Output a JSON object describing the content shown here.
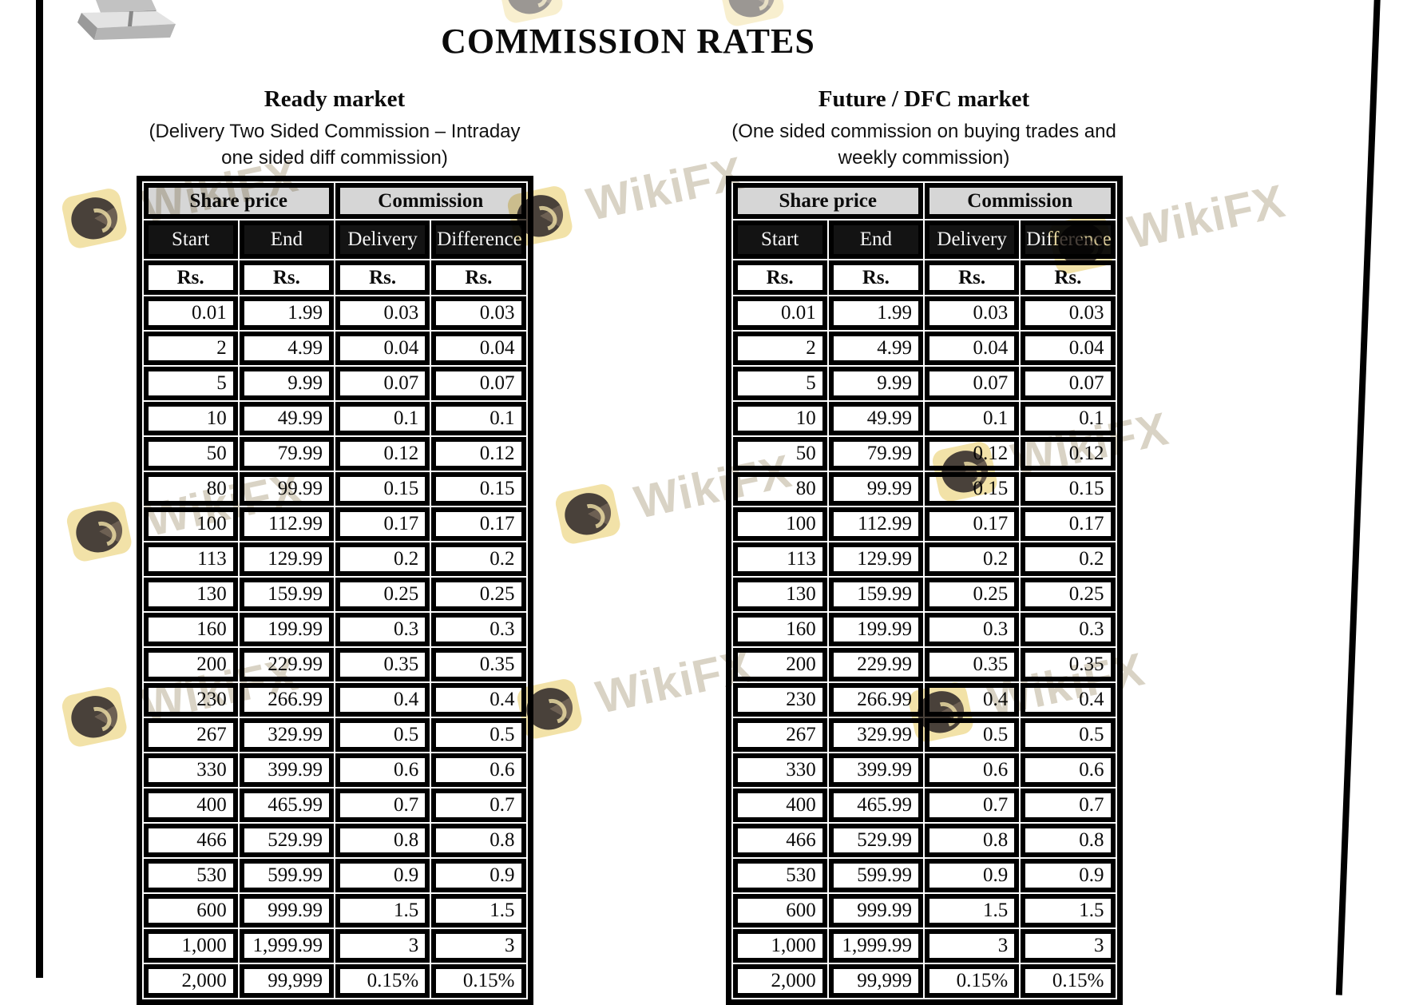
{
  "page": {
    "title": "COMMISSION RATES"
  },
  "watermark": {
    "text": "WikiFX",
    "logo_color": "#f2e2a8",
    "text_color": "#d9d3c5"
  },
  "colors": {
    "group_header_bg": "#d6d6d6",
    "sub_header_bg": "#131313",
    "table_border": "#000000",
    "page_bg": "#ffffff"
  },
  "tables": [
    {
      "title": "Ready market",
      "subtitle_line1": "(Delivery Two Sided Commission – Intraday",
      "subtitle_line2": "one sided diff commission)",
      "group_headers": [
        "Share price",
        "Commission"
      ],
      "col_headers": [
        "Start",
        "End",
        "Delivery",
        "Difference"
      ],
      "unit_row": [
        "Rs.",
        "Rs.",
        "Rs.",
        "Rs."
      ],
      "rows": [
        [
          "0.01",
          "1.99",
          "0.03",
          "0.03"
        ],
        [
          "2",
          "4.99",
          "0.04",
          "0.04"
        ],
        [
          "5",
          "9.99",
          "0.07",
          "0.07"
        ],
        [
          "10",
          "49.99",
          "0.1",
          "0.1"
        ],
        [
          "50",
          "79.99",
          "0.12",
          "0.12"
        ],
        [
          "80",
          "99.99",
          "0.15",
          "0.15"
        ],
        [
          "100",
          "112.99",
          "0.17",
          "0.17"
        ],
        [
          "113",
          "129.99",
          "0.2",
          "0.2"
        ],
        [
          "130",
          "159.99",
          "0.25",
          "0.25"
        ],
        [
          "160",
          "199.99",
          "0.3",
          "0.3"
        ],
        [
          "200",
          "229.99",
          "0.35",
          "0.35"
        ],
        [
          "230",
          "266.99",
          "0.4",
          "0.4"
        ],
        [
          "267",
          "329.99",
          "0.5",
          "0.5"
        ],
        [
          "330",
          "399.99",
          "0.6",
          "0.6"
        ],
        [
          "400",
          "465.99",
          "0.7",
          "0.7"
        ],
        [
          "466",
          "529.99",
          "0.8",
          "0.8"
        ],
        [
          "530",
          "599.99",
          "0.9",
          "0.9"
        ],
        [
          "600",
          "999.99",
          "1.5",
          "1.5"
        ],
        [
          "1,000",
          "1,999.99",
          "3",
          "3"
        ],
        [
          "2,000",
          "99,999",
          "0.15%",
          "0.15%"
        ]
      ]
    },
    {
      "title": "Future / DFC market",
      "subtitle_line1": "(One sided commission on buying trades and",
      "subtitle_line2": "weekly commission)",
      "group_headers": [
        "Share price",
        "Commission"
      ],
      "col_headers": [
        "Start",
        "End",
        "Delivery",
        "Difference"
      ],
      "unit_row": [
        "Rs.",
        "Rs.",
        "Rs.",
        "Rs."
      ],
      "rows": [
        [
          "0.01",
          "1.99",
          "0.03",
          "0.03"
        ],
        [
          "2",
          "4.99",
          "0.04",
          "0.04"
        ],
        [
          "5",
          "9.99",
          "0.07",
          "0.07"
        ],
        [
          "10",
          "49.99",
          "0.1",
          "0.1"
        ],
        [
          "50",
          "79.99",
          "0.12",
          "0.12"
        ],
        [
          "80",
          "99.99",
          "0.15",
          "0.15"
        ],
        [
          "100",
          "112.99",
          "0.17",
          "0.17"
        ],
        [
          "113",
          "129.99",
          "0.2",
          "0.2"
        ],
        [
          "130",
          "159.99",
          "0.25",
          "0.25"
        ],
        [
          "160",
          "199.99",
          "0.3",
          "0.3"
        ],
        [
          "200",
          "229.99",
          "0.35",
          "0.35"
        ],
        [
          "230",
          "266.99",
          "0.4",
          "0.4"
        ],
        [
          "267",
          "329.99",
          "0.5",
          "0.5"
        ],
        [
          "330",
          "399.99",
          "0.6",
          "0.6"
        ],
        [
          "400",
          "465.99",
          "0.7",
          "0.7"
        ],
        [
          "466",
          "529.99",
          "0.8",
          "0.8"
        ],
        [
          "530",
          "599.99",
          "0.9",
          "0.9"
        ],
        [
          "600",
          "999.99",
          "1.5",
          "1.5"
        ],
        [
          "1,000",
          "1,999.99",
          "3",
          "3"
        ],
        [
          "2,000",
          "99,999",
          "0.15%",
          "0.15%"
        ]
      ]
    }
  ]
}
